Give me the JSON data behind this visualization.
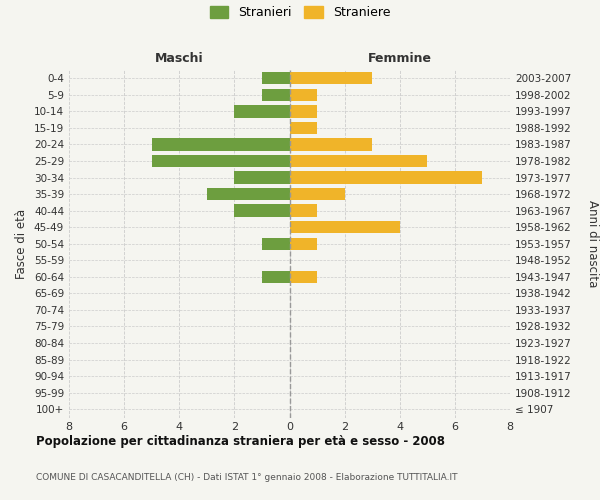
{
  "age_groups": [
    "0-4",
    "5-9",
    "10-14",
    "15-19",
    "20-24",
    "25-29",
    "30-34",
    "35-39",
    "40-44",
    "45-49",
    "50-54",
    "55-59",
    "60-64",
    "65-69",
    "70-74",
    "75-79",
    "80-84",
    "85-89",
    "90-94",
    "95-99",
    "100+"
  ],
  "birth_years": [
    "2003-2007",
    "1998-2002",
    "1993-1997",
    "1988-1992",
    "1983-1987",
    "1978-1982",
    "1973-1977",
    "1968-1972",
    "1963-1967",
    "1958-1962",
    "1953-1957",
    "1948-1952",
    "1943-1947",
    "1938-1942",
    "1933-1937",
    "1928-1932",
    "1923-1927",
    "1918-1922",
    "1913-1917",
    "1908-1912",
    "≤ 1907"
  ],
  "maschi": [
    1,
    1,
    2,
    0,
    5,
    5,
    2,
    3,
    2,
    0,
    1,
    0,
    1,
    0,
    0,
    0,
    0,
    0,
    0,
    0,
    0
  ],
  "femmine": [
    3,
    1,
    1,
    1,
    3,
    5,
    7,
    2,
    1,
    4,
    1,
    0,
    1,
    0,
    0,
    0,
    0,
    0,
    0,
    0,
    0
  ],
  "color_maschi": "#6d9e3f",
  "color_femmine": "#f0b429",
  "xlim": 8,
  "title": "Popolazione per cittadinanza straniera per età e sesso - 2008",
  "subtitle": "COMUNE DI CASACANDITELLA (CH) - Dati ISTAT 1° gennaio 2008 - Elaborazione TUTTITALIA.IT",
  "label_maschi": "Stranieri",
  "label_femmine": "Straniere",
  "header_left": "Maschi",
  "header_right": "Femmine",
  "ylabel_left": "Fasce di età",
  "ylabel_right": "Anni di nascita",
  "bg_color": "#f5f5f0",
  "grid_color": "#cccccc",
  "bar_height": 0.75
}
